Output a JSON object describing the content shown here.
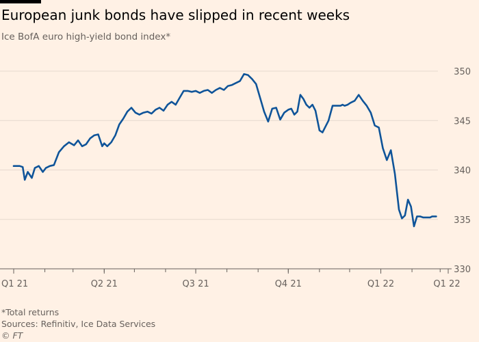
{
  "header": {
    "title": "European junk bonds have slipped in recent weeks",
    "subtitle": "Ice BofA euro high-yield bond index*"
  },
  "footer": {
    "note": "*Total returns",
    "source": "Sources: Refinitiv, Ice Data Services",
    "copyright": "© FT"
  },
  "colors": {
    "background": "#fff1e5",
    "line": "#0f5499",
    "grid": "#e6d9ce"
  },
  "chart_data": {
    "type": "line",
    "title": "European junk bonds have slipped in recent weeks",
    "subtitle": "Ice BofA euro high-yield bond index*",
    "xlabel": "",
    "ylabel": "",
    "ylim": [
      330,
      350
    ],
    "yticks": [
      330,
      335,
      340,
      345,
      350
    ],
    "y_axis_side": "right",
    "grid": true,
    "xlim": [
      "2021-01-01",
      "2022-03-09"
    ],
    "xticks": [
      {
        "date": "2021-01-01",
        "label": "Q1 21"
      },
      {
        "date": "2021-04-01",
        "label": "Q2 21"
      },
      {
        "date": "2021-07-01",
        "label": "Q3 21"
      },
      {
        "date": "2021-10-01",
        "label": "Q4 21"
      },
      {
        "date": "2022-01-01",
        "label": "Q1 22"
      },
      {
        "date": "2022-03-09",
        "label": "Q1 22"
      }
    ],
    "series": [
      {
        "name": "",
        "x": [
          "2021-01-01",
          "2021-01-07",
          "2021-01-10",
          "2021-01-12",
          "2021-01-15",
          "2021-01-19",
          "2021-01-22",
          "2021-01-26",
          "2021-01-30",
          "2021-02-02",
          "2021-02-06",
          "2021-02-10",
          "2021-02-15",
          "2021-02-20",
          "2021-02-25",
          "2021-03-02",
          "2021-03-06",
          "2021-03-10",
          "2021-03-14",
          "2021-03-18",
          "2021-03-22",
          "2021-03-26",
          "2021-03-30",
          "2021-04-01",
          "2021-04-04",
          "2021-04-08",
          "2021-04-12",
          "2021-04-16",
          "2021-04-20",
          "2021-04-24",
          "2021-04-28",
          "2021-05-02",
          "2021-05-06",
          "2021-05-10",
          "2021-05-14",
          "2021-05-18",
          "2021-05-22",
          "2021-05-26",
          "2021-05-30",
          "2021-06-03",
          "2021-06-07",
          "2021-06-11",
          "2021-06-15",
          "2021-06-19",
          "2021-06-23",
          "2021-06-27",
          "2021-07-01",
          "2021-07-05",
          "2021-07-09",
          "2021-07-13",
          "2021-07-17",
          "2021-07-21",
          "2021-07-25",
          "2021-07-29",
          "2021-08-02",
          "2021-08-06",
          "2021-08-10",
          "2021-08-14",
          "2021-08-18",
          "2021-08-22",
          "2021-08-26",
          "2021-08-30",
          "2021-09-03",
          "2021-09-07",
          "2021-09-11",
          "2021-09-15",
          "2021-09-19",
          "2021-09-23",
          "2021-09-27",
          "2021-10-01",
          "2021-10-04",
          "2021-10-07",
          "2021-10-10",
          "2021-10-13",
          "2021-10-16",
          "2021-10-19",
          "2021-10-22",
          "2021-10-25",
          "2021-10-28",
          "2021-11-01",
          "2021-11-04",
          "2021-11-07",
          "2021-11-10",
          "2021-11-14",
          "2021-11-18",
          "2021-11-22",
          "2021-11-24",
          "2021-11-26",
          "2021-11-29",
          "2021-12-02",
          "2021-12-06",
          "2021-12-10",
          "2021-12-14",
          "2021-12-18",
          "2021-12-22",
          "2021-12-26",
          "2021-12-30",
          "2022-01-03",
          "2022-01-07",
          "2022-01-11",
          "2022-01-15",
          "2022-01-19",
          "2022-01-22",
          "2022-01-25",
          "2022-01-28",
          "2022-01-31",
          "2022-02-03",
          "2022-02-06",
          "2022-02-09",
          "2022-02-12",
          "2022-02-15",
          "2022-02-17",
          "2022-02-19",
          "2022-02-21",
          "2022-02-23",
          "2022-02-25",
          "2022-02-28",
          "2022-03-02",
          "2022-03-04",
          "2022-03-06",
          "2022-03-08"
        ],
        "values": [
          340.4,
          340.4,
          340.3,
          339.0,
          339.8,
          339.2,
          340.2,
          340.4,
          339.8,
          340.2,
          340.4,
          340.5,
          341.8,
          342.4,
          342.8,
          342.5,
          343.0,
          342.4,
          342.6,
          343.2,
          343.5,
          343.6,
          342.4,
          342.7,
          342.4,
          342.8,
          343.5,
          344.6,
          345.2,
          345.9,
          346.3,
          345.8,
          345.6,
          345.8,
          345.9,
          345.7,
          346.1,
          346.3,
          346.0,
          346.6,
          346.9,
          346.6,
          347.3,
          348.0,
          348.0,
          347.9,
          348.0,
          347.8,
          348.0,
          348.1,
          347.8,
          348.1,
          348.3,
          348.1,
          348.5,
          348.6,
          348.8,
          349.0,
          349.7,
          349.6,
          349.2,
          348.7,
          347.3,
          345.9,
          344.9,
          346.2,
          346.3,
          345.1,
          345.8,
          346.1,
          346.2,
          345.6,
          345.9,
          347.6,
          347.2,
          346.6,
          346.3,
          346.6,
          346.0,
          344.0,
          343.8,
          344.4,
          345.0,
          346.5,
          346.5,
          346.5,
          346.6,
          346.5,
          346.6,
          346.8,
          347.0,
          347.6,
          347.0,
          346.5,
          345.8,
          344.5,
          344.3,
          342.2,
          341.0,
          342.0,
          339.6,
          336.0,
          335.1,
          335.4,
          337.0,
          336.3,
          334.3,
          335.3,
          335.3,
          335.2,
          335.2,
          335.2,
          335.2,
          335.3,
          335.3,
          335.3,
          335.3,
          335.3,
          335.3,
          335.3,
          335.3
        ]
      }
    ]
  }
}
